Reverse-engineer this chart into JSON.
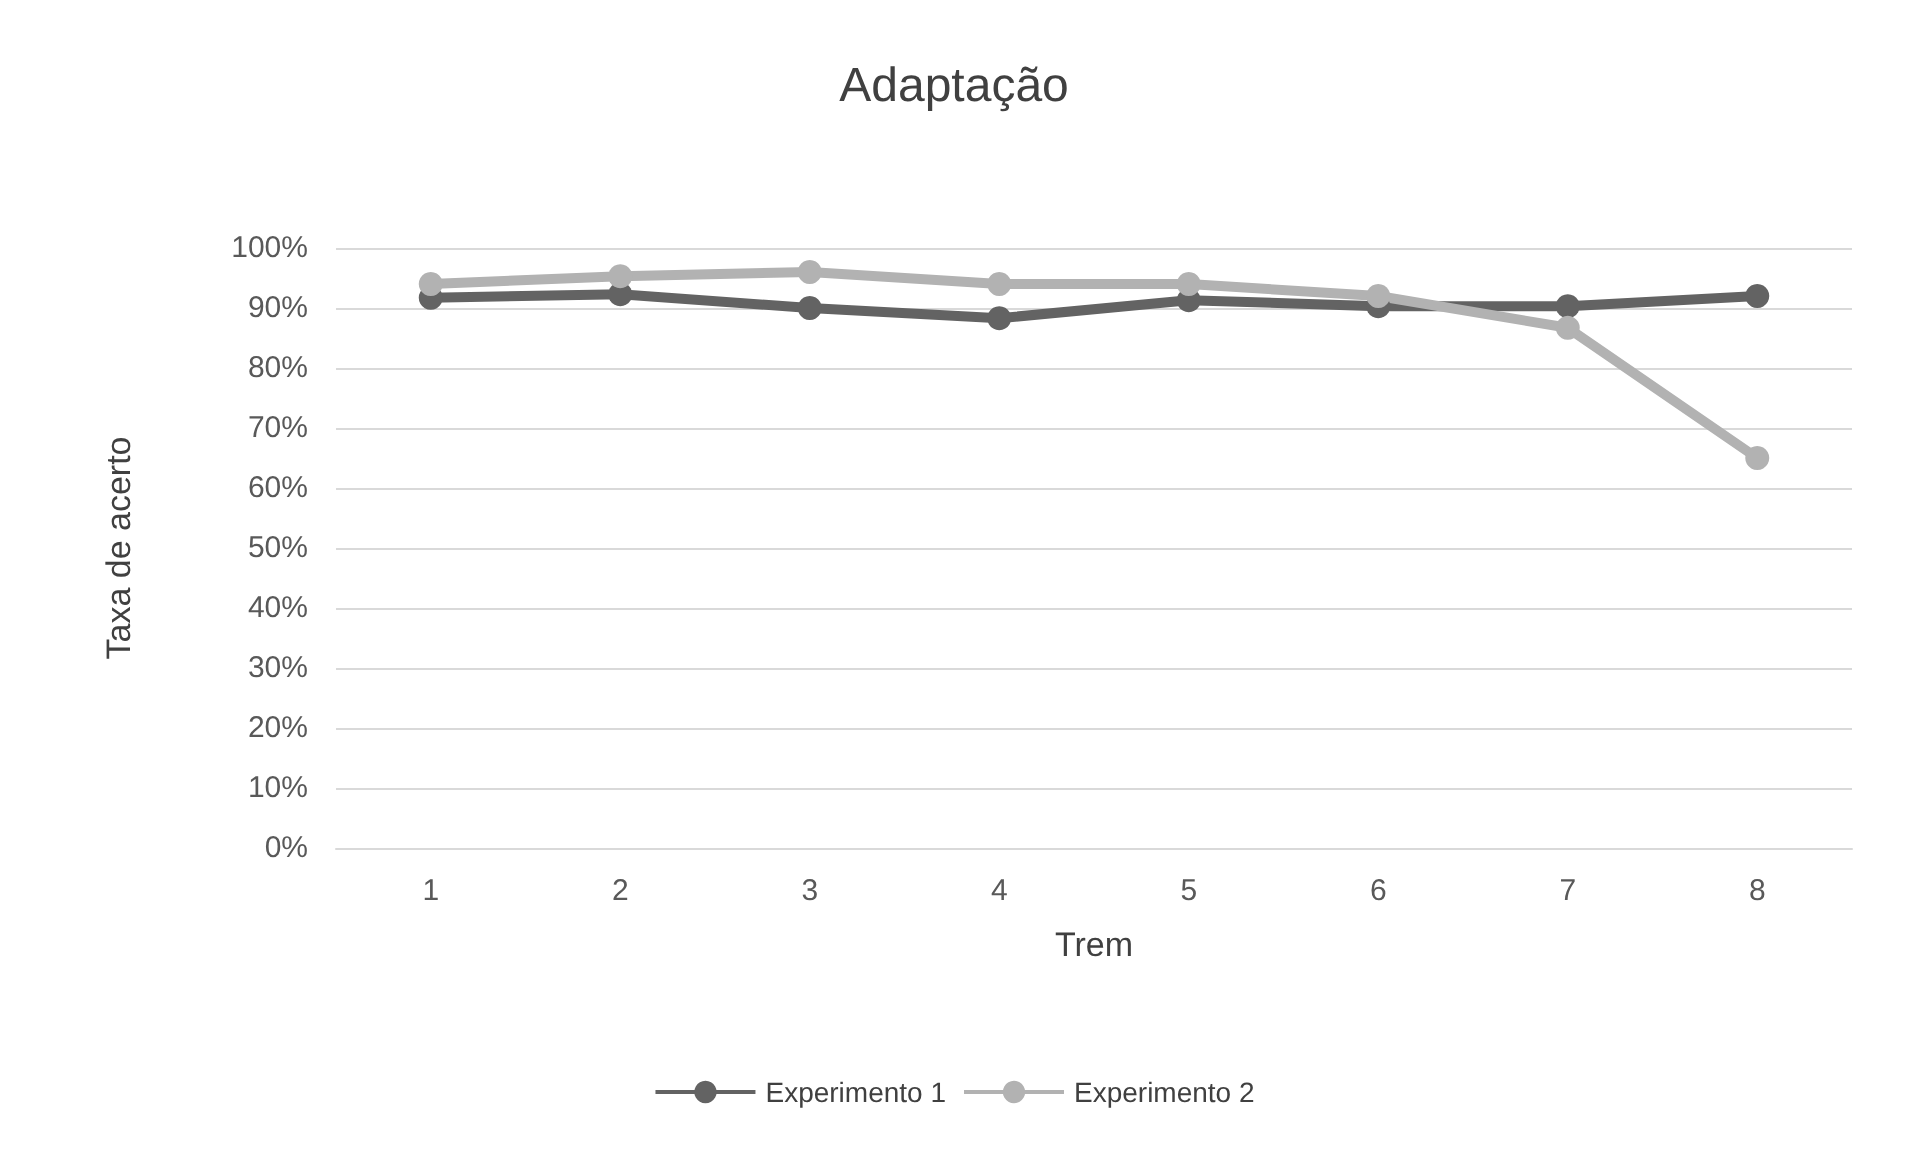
{
  "chart_data": {
    "type": "line",
    "title": "Adaptação",
    "xlabel": "Trem",
    "ylabel": "Taxa de acerto",
    "categories": [
      "1",
      "2",
      "3",
      "4",
      "5",
      "6",
      "7",
      "8"
    ],
    "series": [
      {
        "name": "Experimento 1",
        "color": "#636363",
        "values": [
          91.7,
          92.3,
          90,
          88.3,
          91.3,
          90.3,
          90.3,
          92
        ]
      },
      {
        "name": "Experimento 2",
        "color": "#b2b2b2",
        "values": [
          94,
          95.3,
          96,
          94,
          94,
          92,
          86.7,
          65
        ]
      }
    ],
    "ylim": [
      0,
      100
    ],
    "yticks": [
      {
        "value": 0,
        "label": "0%"
      },
      {
        "value": 10,
        "label": "10%"
      },
      {
        "value": 20,
        "label": "20%"
      },
      {
        "value": 30,
        "label": "30%"
      },
      {
        "value": 40,
        "label": "40%"
      },
      {
        "value": 50,
        "label": "50%"
      },
      {
        "value": 60,
        "label": "60%"
      },
      {
        "value": 70,
        "label": "70%"
      },
      {
        "value": 80,
        "label": "80%"
      },
      {
        "value": 90,
        "label": "90%"
      },
      {
        "value": 100,
        "label": "100%"
      }
    ],
    "grid": "y",
    "legend": "bottom",
    "marker": "circle",
    "line_style": "solid"
  }
}
